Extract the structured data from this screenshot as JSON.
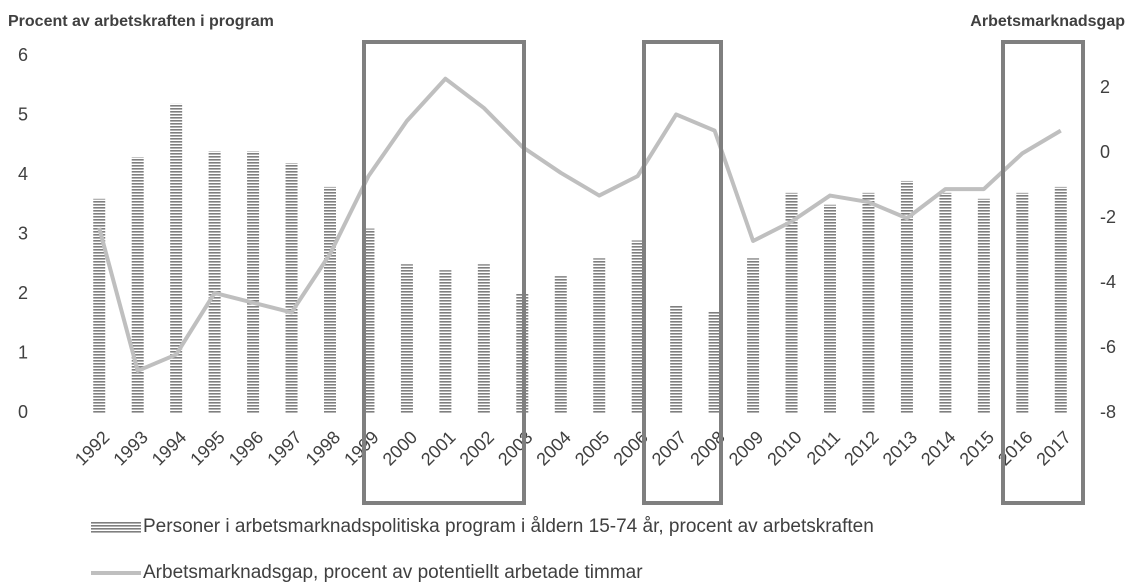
{
  "chart_data": {
    "type": "bar",
    "y_label": "Procent av arbetskraften i program",
    "y2_label": "Arbetsmarknadsgap",
    "categories": [
      "1992",
      "1993",
      "1994",
      "1995",
      "1996",
      "1997",
      "1998",
      "1999",
      "2000",
      "2001",
      "2002",
      "2003",
      "2004",
      "2005",
      "2006",
      "2007",
      "2008",
      "2009",
      "2010",
      "2011",
      "2012",
      "2013",
      "2014",
      "2015",
      "2016",
      "2017"
    ],
    "series": [
      {
        "name": "Personer i arbetsmarknadspolitiska program i åldern 15-74 år, procent av arbetskraften",
        "type": "bar",
        "color": "#7f7f7f",
        "values": [
          3.6,
          4.3,
          5.2,
          4.4,
          4.4,
          4.2,
          3.8,
          3.1,
          2.5,
          2.4,
          2.5,
          2.0,
          2.3,
          2.6,
          2.9,
          1.8,
          1.7,
          2.6,
          3.7,
          3.5,
          3.7,
          3.9,
          3.7,
          3.6,
          3.7,
          3.8
        ]
      },
      {
        "name": "Arbetsmarknadsgap, procent av potentiellt arbetade timmar",
        "type": "line",
        "color": "#bfbfbf",
        "axis": "y2",
        "values": [
          -2.3,
          -6.7,
          -6.2,
          -4.3,
          -4.6,
          -4.9,
          -3.1,
          -0.7,
          1.0,
          2.3,
          1.4,
          0.2,
          -0.6,
          -1.3,
          -0.7,
          1.2,
          0.7,
          -2.7,
          -2.1,
          -1.3,
          -1.5,
          -2.0,
          -1.1,
          -1.1,
          0,
          0.7
        ]
      }
    ],
    "ylim": [
      0,
      6
    ],
    "yticks": [
      0,
      1,
      2,
      3,
      4,
      5,
      6
    ],
    "y2lim": [
      -8,
      3
    ],
    "y2ticks": [
      -8,
      -6,
      -4,
      -2,
      0,
      2
    ],
    "legend": "bottom",
    "grid": false
  }
}
